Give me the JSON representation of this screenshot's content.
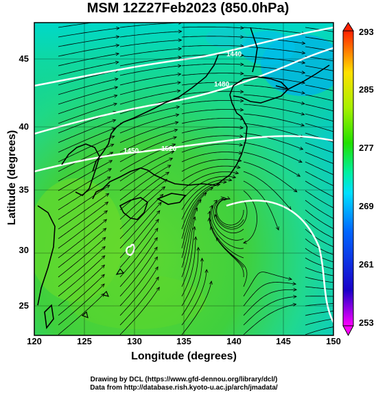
{
  "title": "MSM 12Z27Feb2023 (850.0hPa)",
  "xlabel": "Longitude (degrees)",
  "ylabel": "Latitude  (degrees)",
  "xticks": [
    "120",
    "125",
    "130",
    "135",
    "140",
    "145",
    "150"
  ],
  "yticks": [
    "25",
    "30",
    "35",
    "40",
    "45"
  ],
  "colorbar_ticks": [
    "293",
    "285",
    "277",
    "269",
    "261",
    "253"
  ],
  "contour_labels": [
    "1520",
    "1480",
    "1440",
    "1450"
  ],
  "credits": {
    "line1": "Drawing by DCL (https://www.gfd-dennou.org/library/dcl/)",
    "line2": "Data from http://database.rish.kyoto-u.ac.jp/arch/jmadata/"
  },
  "colors": {
    "warm": "#39c93a",
    "mid": "#7de02a",
    "cool": "#00d8a8",
    "cold": "#00b4e6",
    "frame": "#000000"
  },
  "chart_data": {
    "type": "heatmap",
    "variable": "temperature (K) with wind streamlines and geopotential height contours",
    "x_range": [
      120,
      150
    ],
    "y_range": [
      22.5,
      48
    ],
    "colorbar_range": [
      253,
      293
    ]
  }
}
